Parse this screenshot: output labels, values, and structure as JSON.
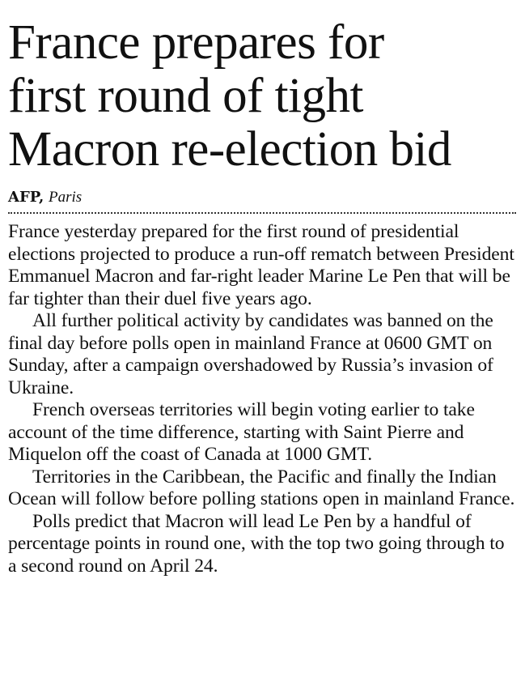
{
  "article": {
    "headline": "France prepares for\nfirst round of tight\nMacron re-election bid",
    "byline": {
      "agency": "AFP,",
      "place": "Paris"
    },
    "paragraphs": [
      "France yesterday prepared for the first round of presidential elections projected to produce a run-off rematch between President Emmanuel Macron and far-right leader Marine Le Pen that will be far tighter than their duel five years ago.",
      "All further political activity by candidates was banned on the final day before polls open in mainland France at 0600 GMT on Sunday, after a campaign overshadowed by Russia’s invasion of Ukraine.",
      "French overseas territories will begin voting earlier to take account of the time difference, starting with Saint Pierre and Miquelon off the coast of Canada at 1000 GMT.",
      "Territories in the Caribbean, the Pacific and finally the Indian Ocean will follow before polling stations open in mainland France.",
      "Polls predict that Macron will lead Le Pen by a handful of percentage points in round one, with the top two going through to a second round on April 24."
    ]
  }
}
